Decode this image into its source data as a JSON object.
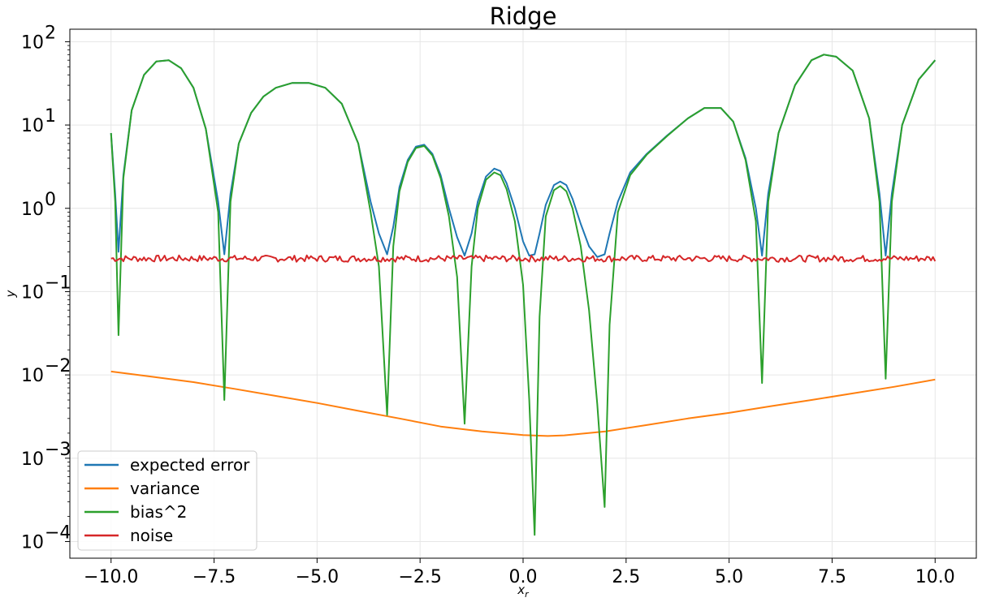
{
  "chart_data": {
    "type": "line",
    "title": "Ridge",
    "xlabel": "x_r",
    "ylabel": "y",
    "xlim": [
      -11,
      11
    ],
    "ylim_log10": [
      -4.2,
      2.15
    ],
    "yscale": "log",
    "grid": true,
    "legend_position": "lower-left",
    "x_ticks": [
      -10,
      -7.5,
      -5,
      -2.5,
      0,
      2.5,
      5,
      7.5,
      10
    ],
    "x_tick_labels": [
      "−10.0",
      "−7.5",
      "−5.0",
      "−2.5",
      "0.0",
      "2.5",
      "5.0",
      "7.5",
      "10.0"
    ],
    "y_ticks_exp": [
      -4,
      -3,
      -2,
      -1,
      0,
      1,
      2
    ],
    "y_tick_labels": [
      "10",
      "10",
      "10",
      "10",
      "10",
      "10",
      "10"
    ],
    "y_tick_exps": [
      "−4",
      "−3",
      "−2",
      "−1",
      "0",
      "1",
      "2"
    ],
    "series": [
      {
        "name": "expected error",
        "color": "#1f77b4",
        "x": [
          -10.0,
          -9.9,
          -9.82,
          -9.7,
          -9.5,
          -9.2,
          -8.9,
          -8.6,
          -8.3,
          -8.0,
          -7.7,
          -7.4,
          -7.25,
          -7.1,
          -6.9,
          -6.6,
          -6.3,
          -6.0,
          -5.6,
          -5.2,
          -4.8,
          -4.4,
          -4.0,
          -3.7,
          -3.5,
          -3.3,
          -3.15,
          -3.0,
          -2.8,
          -2.6,
          -2.4,
          -2.2,
          -2.0,
          -1.8,
          -1.6,
          -1.42,
          -1.25,
          -1.1,
          -0.9,
          -0.7,
          -0.55,
          -0.4,
          -0.2,
          0.0,
          0.15,
          0.28,
          0.4,
          0.55,
          0.75,
          0.9,
          1.05,
          1.2,
          1.4,
          1.6,
          1.8,
          1.98,
          2.1,
          2.3,
          2.6,
          3.0,
          3.5,
          4.0,
          4.4,
          4.8,
          5.1,
          5.4,
          5.65,
          5.8,
          5.95,
          6.2,
          6.6,
          7.0,
          7.3,
          7.6,
          8.0,
          8.4,
          8.65,
          8.8,
          8.95,
          9.2,
          9.6,
          10.0
        ],
        "y": [
          8.0,
          1.5,
          0.3,
          2.5,
          15,
          40,
          58,
          60,
          48,
          28,
          9,
          1.2,
          0.28,
          1.5,
          6,
          14,
          22,
          28,
          32,
          32,
          28,
          18,
          6,
          1.2,
          0.5,
          0.28,
          0.6,
          1.8,
          3.8,
          5.5,
          5.8,
          4.5,
          2.5,
          1.0,
          0.45,
          0.27,
          0.5,
          1.2,
          2.4,
          3.0,
          2.8,
          2.0,
          1.0,
          0.4,
          0.27,
          0.28,
          0.5,
          1.1,
          1.9,
          2.1,
          1.9,
          1.3,
          0.65,
          0.35,
          0.26,
          0.28,
          0.5,
          1.2,
          2.7,
          4.5,
          7.5,
          12,
          16,
          16,
          11,
          4,
          1.0,
          0.27,
          1.5,
          8,
          30,
          60,
          70,
          66,
          45,
          12,
          1.5,
          0.27,
          1.5,
          10,
          35,
          60
        ]
      },
      {
        "name": "variance",
        "color": "#ff7f0e",
        "x": [
          -10.0,
          -9.0,
          -8.0,
          -7.0,
          -6.0,
          -5.0,
          -4.0,
          -3.0,
          -2.0,
          -1.0,
          0.0,
          0.6,
          1.0,
          2.0,
          3.0,
          4.0,
          5.0,
          6.0,
          7.0,
          8.0,
          9.0,
          10.0
        ],
        "y": [
          0.011,
          0.0095,
          0.0082,
          0.0068,
          0.0056,
          0.0046,
          0.0037,
          0.003,
          0.0024,
          0.0021,
          0.0019,
          0.00185,
          0.00188,
          0.0021,
          0.0025,
          0.003,
          0.0035,
          0.0042,
          0.005,
          0.006,
          0.0072,
          0.0088
        ]
      },
      {
        "name": "bias^2",
        "color": "#2ca02c",
        "x": [
          -10.0,
          -9.9,
          -9.82,
          -9.7,
          -9.5,
          -9.2,
          -8.9,
          -8.6,
          -8.3,
          -8.0,
          -7.7,
          -7.4,
          -7.25,
          -7.1,
          -6.9,
          -6.6,
          -6.3,
          -6.0,
          -5.6,
          -5.2,
          -4.8,
          -4.4,
          -4.0,
          -3.7,
          -3.5,
          -3.3,
          -3.15,
          -3.0,
          -2.8,
          -2.6,
          -2.4,
          -2.2,
          -2.0,
          -1.8,
          -1.6,
          -1.42,
          -1.25,
          -1.1,
          -0.9,
          -0.7,
          -0.55,
          -0.4,
          -0.2,
          0.0,
          0.15,
          0.28,
          0.4,
          0.55,
          0.75,
          0.9,
          1.05,
          1.2,
          1.4,
          1.6,
          1.8,
          1.98,
          2.1,
          2.3,
          2.6,
          3.0,
          3.5,
          4.0,
          4.4,
          4.8,
          5.1,
          5.4,
          5.65,
          5.8,
          5.95,
          6.2,
          6.6,
          7.0,
          7.3,
          7.6,
          8.0,
          8.4,
          8.65,
          8.8,
          8.95,
          9.2,
          9.6,
          10.0
        ],
        "y": [
          8.0,
          1.2,
          0.03,
          2.3,
          15,
          40,
          58,
          60,
          48,
          28,
          9,
          0.9,
          0.005,
          1.2,
          6,
          14,
          22,
          28,
          32,
          32,
          28,
          18,
          6,
          0.9,
          0.2,
          0.0033,
          0.35,
          1.6,
          3.6,
          5.3,
          5.6,
          4.3,
          2.3,
          0.8,
          0.15,
          0.0026,
          0.2,
          1.0,
          2.2,
          2.7,
          2.5,
          1.7,
          0.7,
          0.12,
          0.005,
          0.00012,
          0.05,
          0.8,
          1.65,
          1.85,
          1.6,
          1.0,
          0.35,
          0.06,
          0.0045,
          0.00026,
          0.04,
          0.9,
          2.5,
          4.4,
          7.4,
          12,
          16,
          16,
          11,
          3.8,
          0.7,
          0.008,
          1.2,
          8,
          30,
          60,
          70,
          66,
          45,
          12,
          1.2,
          0.009,
          1.2,
          10,
          35,
          60
        ]
      },
      {
        "name": "noise",
        "color": "#d62728",
        "noise_mean": 0.25,
        "x": [
          -10.0,
          10.0
        ],
        "y": [
          0.25,
          0.25
        ]
      }
    ]
  }
}
